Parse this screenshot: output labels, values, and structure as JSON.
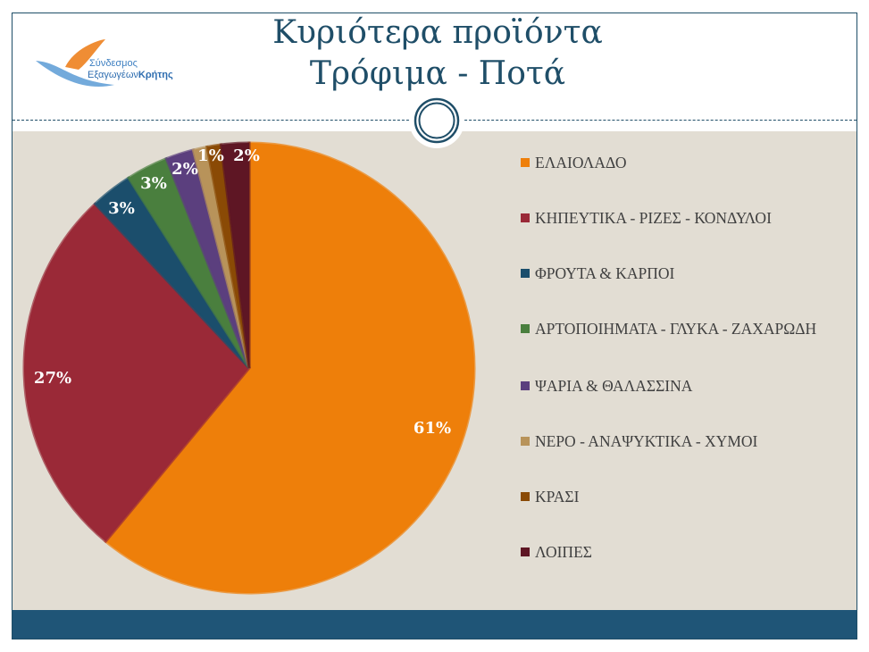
{
  "title_line1": "Κυριότερα προϊόντα",
  "title_line2": "Τρόφιμα - Ποτά",
  "logo": {
    "line1": "Σύνδεσμος",
    "line2a": "Εξαγωγέων",
    "line2b": "Κρήτης"
  },
  "chart_data": {
    "type": "pie",
    "title": "Κυριότερα προϊόντα Τρόφιμα - Ποτά",
    "legend_position": "right",
    "categories": [
      "ΕΛΑΙΟΛΑΔΟ",
      "ΚΗΠΕΥΤΙΚΑ - ΡΙΖΕΣ - ΚΟΝΔΥΛΟΙ",
      "ΦΡΟΥΤΑ & ΚΑΡΠΟΙ",
      "ΑΡΤΟΠΟΙΗΜΑΤΑ - ΓΛΥΚΑ - ΖΑΧΑΡΩΔΗ",
      "ΨΑΡΙΑ & ΘΑΛΑΣΣΙΝΑ",
      "ΝΕΡΟ - ΑΝΑΨΥΚΤΙΚΑ - ΧΥΜΟΙ",
      "ΚΡΑΣΙ",
      "ΛΟΙΠΕΣ"
    ],
    "values": [
      61,
      27,
      3,
      3,
      2,
      1,
      1,
      2
    ],
    "labels": [
      "61%",
      "27%",
      "3%",
      "3%",
      "2%",
      "1%",
      "",
      "2%"
    ],
    "colors": [
      "#ee7f0a",
      "#9a2937",
      "#1b4e6c",
      "#4a7f3e",
      "#5b3f7e",
      "#b8935a",
      "#8a4a05",
      "#5e1624"
    ]
  }
}
